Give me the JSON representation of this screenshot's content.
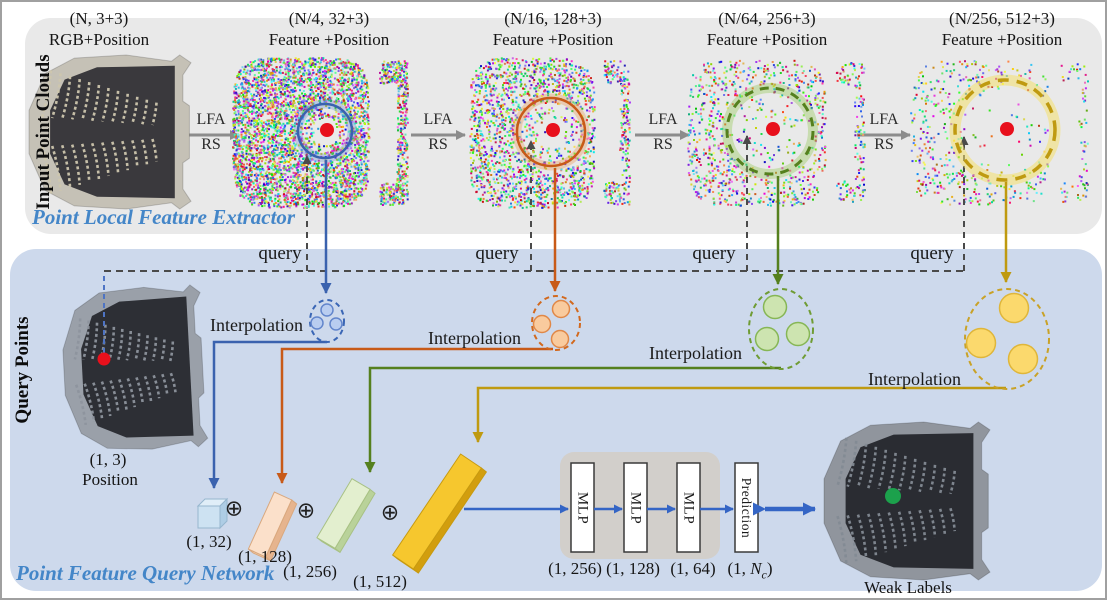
{
  "extractor": {
    "side_label": "Input Point Clouds",
    "caption": "Point Local Feature Extractor",
    "lfa_label": "LFA",
    "rs_label": "RS",
    "stages": [
      {
        "dims": "(N, 3+3)",
        "desc": "RGB+Position"
      },
      {
        "dims": "(N/4, 32+3)",
        "desc": "Feature +Position"
      },
      {
        "dims": "(N/16, 128+3)",
        "desc": "Feature +Position"
      },
      {
        "dims": "(N/64, 256+3)",
        "desc": "Feature +Position"
      },
      {
        "dims": "(N/256, 512+3)",
        "desc": "Feature +Position"
      }
    ]
  },
  "query_network": {
    "side_label": "Query Points",
    "caption": "Point Feature Query Network",
    "query_label": "query",
    "interpolation_label": "Interpolation",
    "position": {
      "dims": "(1, 3)",
      "label": "Position"
    },
    "concat_symbol": "⊕",
    "feature_dims": [
      "(1, 32)",
      "(1, 128)",
      "(1, 256)",
      "(1, 512)"
    ],
    "mlp_chain": {
      "blocks": [
        {
          "label": "MLP",
          "dims": "(1, 256)"
        },
        {
          "label": "MLP",
          "dims": "(1, 128)"
        },
        {
          "label": "MLP",
          "dims": "(1, 64)"
        }
      ],
      "prediction": {
        "label": "Prediction",
        "dims_pre": "(1, ",
        "dims_var": "N",
        "dims_sub": "c",
        "dims_post": ")"
      }
    },
    "weak_labels_caption": "Weak Labels"
  },
  "colors": {
    "level_blue": "#3a62ae",
    "level_orange": "#c85a18",
    "level_green": "#55801e",
    "level_gold": "#bf9a10",
    "query_point_red": "#e8101c",
    "weak_label_green": "#1ca14c",
    "caption_blue": "#4486c8",
    "panel_top_bg": "#e9e9e9",
    "panel_bottom_bg": "#cdd9ec",
    "mlp_arrow_blue": "#3465c5"
  }
}
